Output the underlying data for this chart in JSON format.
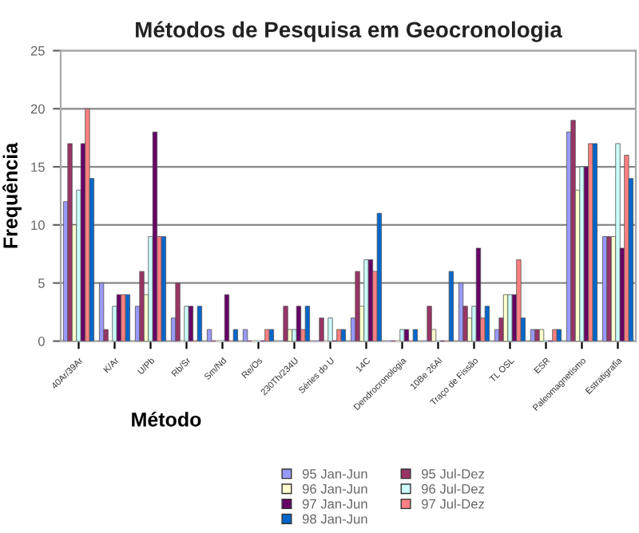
{
  "chart_data": {
    "type": "bar",
    "title": "Métodos de Pesquisa em Geocronologia",
    "xlabel": "Método",
    "ylabel": "Frequência",
    "categories": [
      "40Ar/39Ar",
      "K/Ar",
      "U/Pb",
      "Rb/Sr",
      "Sm/Nd",
      "Re/Os",
      "230Th/234U",
      "Séries do U",
      "14C",
      "Dendrocronologia",
      "10Be 26Al",
      "Traço de Fissão",
      "TL OSL",
      "ESR",
      "Paleomagnetismo",
      "Estratigrafia"
    ],
    "series": [
      {
        "name": "95 Jan-Jun",
        "color": "#9999ff",
        "values": [
          12,
          5,
          3,
          2,
          1,
          1,
          0,
          0,
          2,
          0,
          0,
          5,
          1,
          1,
          18,
          9
        ]
      },
      {
        "name": "95 Jul-Dez",
        "color": "#993366",
        "values": [
          17,
          1,
          6,
          5,
          0,
          0,
          3,
          2,
          6,
          0,
          3,
          3,
          2,
          1,
          19,
          9
        ]
      },
      {
        "name": "96 Jan-Jun",
        "color": "#ffffcc",
        "values": [
          10,
          0,
          4,
          0,
          0,
          0,
          1,
          0,
          3,
          0,
          1,
          2,
          4,
          1,
          13,
          9
        ]
      },
      {
        "name": "96 Jul-Dez",
        "color": "#ccffff",
        "values": [
          13,
          3,
          9,
          3,
          0,
          0,
          1,
          2,
          7,
          1,
          0,
          3,
          4,
          0,
          15,
          17
        ]
      },
      {
        "name": "97 Jan-Jun",
        "color": "#660066",
        "values": [
          17,
          4,
          18,
          3,
          4,
          0,
          3,
          0,
          7,
          1,
          0,
          8,
          4,
          0,
          15,
          8
        ]
      },
      {
        "name": "97 Jul-Dez",
        "color": "#ff8080",
        "values": [
          20,
          4,
          9,
          0,
          0,
          1,
          1,
          1,
          6,
          0,
          0,
          2,
          7,
          1,
          17,
          16
        ]
      },
      {
        "name": "98 Jan-Jun",
        "color": "#0066cc",
        "values": [
          14,
          4,
          9,
          3,
          1,
          1,
          3,
          1,
          11,
          1,
          6,
          3,
          2,
          1,
          17,
          14
        ]
      }
    ],
    "ylim": [
      0,
      25
    ],
    "yticks": [
      0,
      5,
      10,
      15,
      20,
      25
    ],
    "grid": "y",
    "legend": "bottom"
  }
}
